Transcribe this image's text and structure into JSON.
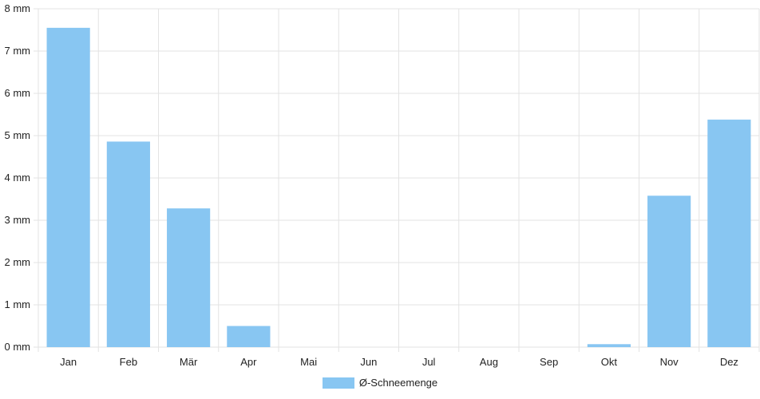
{
  "chart_data": {
    "type": "bar",
    "categories": [
      "Jan",
      "Feb",
      "Mär",
      "Apr",
      "Mai",
      "Jun",
      "Jul",
      "Aug",
      "Sep",
      "Okt",
      "Nov",
      "Dez"
    ],
    "series": [
      {
        "name": "Ø-Schneemenge",
        "values": [
          7.55,
          4.86,
          3.28,
          0.5,
          0,
          0,
          0,
          0,
          0,
          0.07,
          3.58,
          5.38
        ]
      }
    ],
    "y_ticks": [
      "0 mm",
      "1 mm",
      "2 mm",
      "3 mm",
      "4 mm",
      "5 mm",
      "6 mm",
      "7 mm",
      "8 mm"
    ],
    "ylim": [
      0,
      8
    ],
    "grid": true,
    "legend_position": "bottom-center",
    "colors": {
      "bar": "#88c6f2",
      "grid": "#e3e3e3",
      "text": "#222222"
    }
  },
  "legend": {
    "label": "Ø-Schneemenge"
  }
}
